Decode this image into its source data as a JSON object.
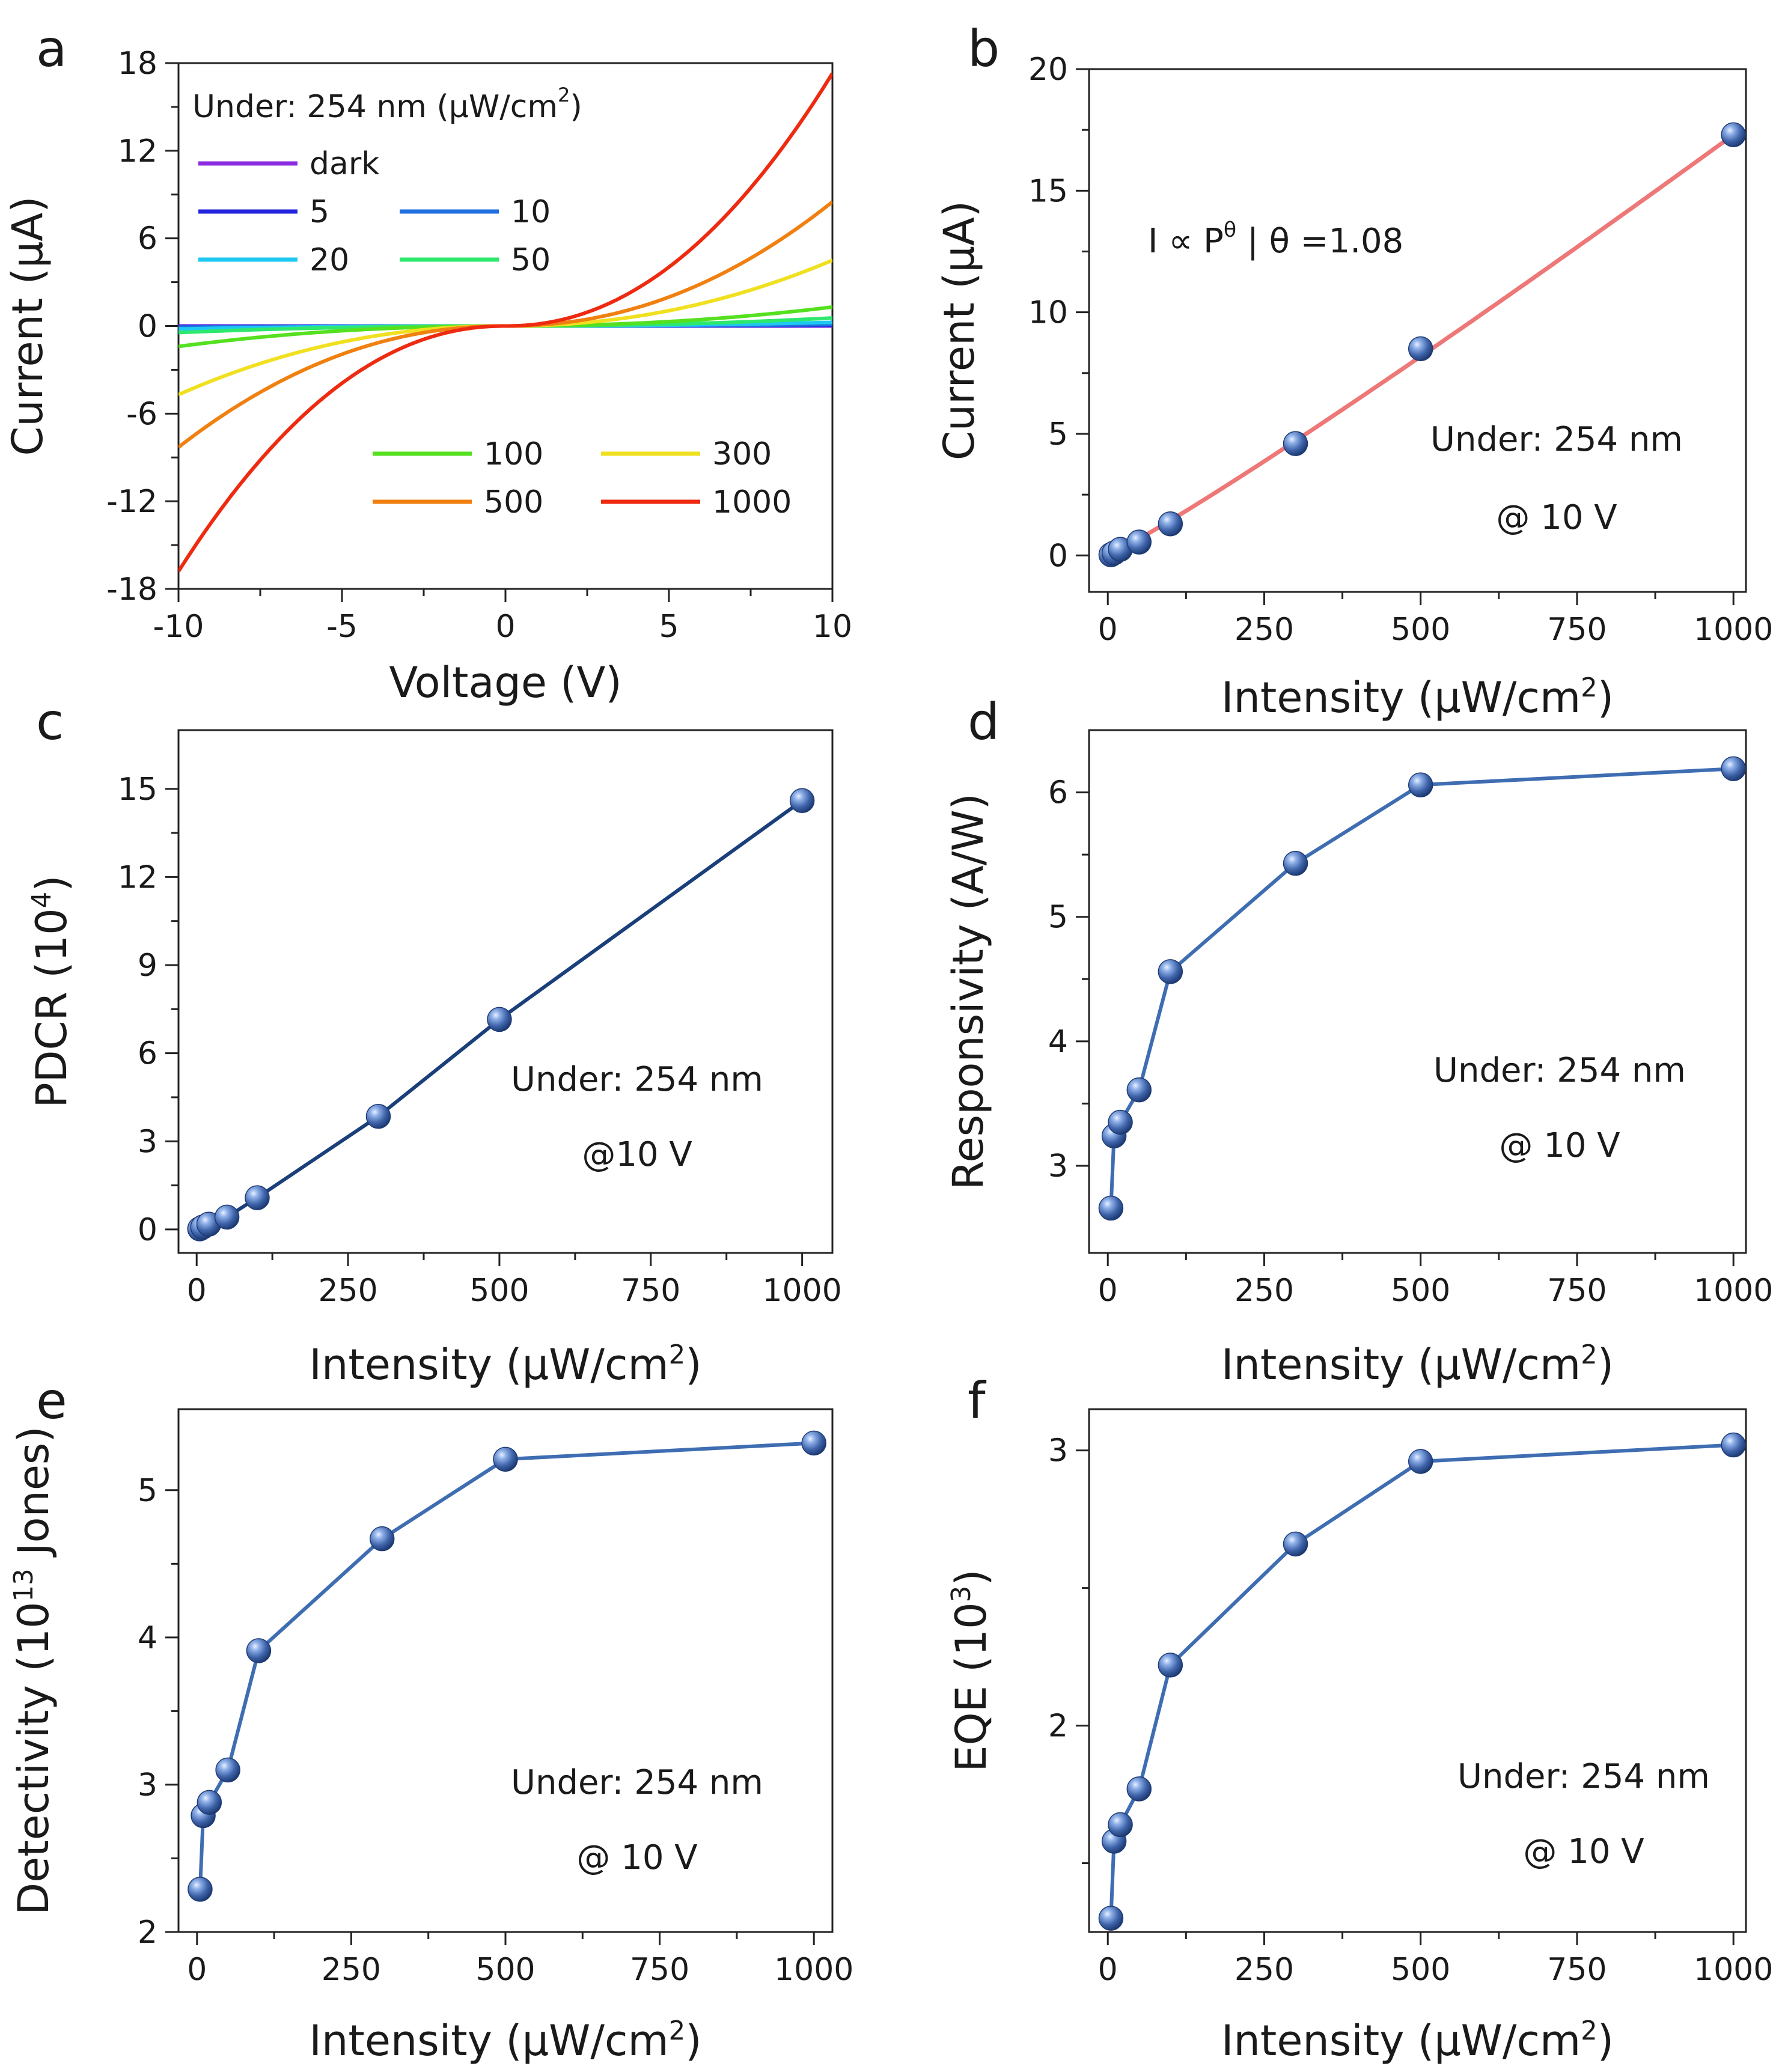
{
  "figure": {
    "panels": [
      "a",
      "b",
      "c",
      "d",
      "e",
      "f"
    ]
  },
  "chart_data": [
    {
      "panel": "a",
      "type": "line",
      "xlabel": "Voltage (V)",
      "ylabel": "Current (μA)",
      "xlim": [
        -10,
        10
      ],
      "ylim": [
        -18,
        18
      ],
      "xticks": [
        -10,
        -5,
        0,
        5,
        10
      ],
      "yticks": [
        -18,
        -12,
        -6,
        0,
        6,
        12,
        18
      ],
      "legend_title": "Under: 254 nm (μW/cm²)",
      "legend_title_parts": [
        "Under: 254 nm (μW/cm",
        "2",
        ")"
      ],
      "series": [
        {
          "name": "dark",
          "color": "#8a2be2",
          "i_pos": 0.0,
          "i_neg": 0.0
        },
        {
          "name": "5",
          "color": "#2222dd",
          "i_pos": 0.05,
          "i_neg": -0.04
        },
        {
          "name": "10",
          "color": "#1f6fe0",
          "i_pos": 0.1,
          "i_neg": -0.08
        },
        {
          "name": "20",
          "color": "#1ec8f0",
          "i_pos": 0.25,
          "i_neg": -0.2
        },
        {
          "name": "50",
          "color": "#2ee86e",
          "i_pos": 0.55,
          "i_neg": -0.45
        },
        {
          "name": "100",
          "color": "#55e020",
          "i_pos": 1.3,
          "i_neg": -1.4
        },
        {
          "name": "300",
          "color": "#f0e020",
          "i_pos": 4.5,
          "i_neg": -4.7
        },
        {
          "name": "500",
          "color": "#f08010",
          "i_pos": 8.5,
          "i_neg": -8.3
        },
        {
          "name": "1000",
          "color": "#ee2a10",
          "i_pos": 17.3,
          "i_neg": -16.8
        }
      ]
    },
    {
      "panel": "b",
      "type": "scatter",
      "xlabel": "Intensity (μW/cm²)",
      "xlabel_parts": [
        "Intensity (μW/cm",
        "2",
        ")"
      ],
      "ylabel": "Current (μA)",
      "xlim": [
        -30,
        1020
      ],
      "ylim": [
        -1.5,
        20
      ],
      "xticks": [
        0,
        250,
        500,
        750,
        1000
      ],
      "yticks": [
        0,
        5,
        10,
        15,
        20
      ],
      "x": [
        5,
        10,
        20,
        50,
        100,
        300,
        500,
        1000
      ],
      "y": [
        0.03,
        0.1,
        0.25,
        0.55,
        1.3,
        4.6,
        8.5,
        17.3
      ],
      "fit": {
        "type": "power",
        "theta": 1.08,
        "color": "#ee7777"
      },
      "fit_label": "I ∝ P^θ | θ =1.08",
      "fit_label_parts": [
        "I ∝ P",
        "θ",
        " | θ =1.08"
      ],
      "annotations": [
        "Under: 254 nm",
        "@ 10 V"
      ]
    },
    {
      "panel": "c",
      "type": "line",
      "xlabel": "Intensity (μW/cm²)",
      "xlabel_parts": [
        "Intensity (μW/cm",
        "2",
        ")"
      ],
      "ylabel": "PDCR (10⁴)",
      "ylabel_parts": [
        "PDCR (10",
        "4",
        ")"
      ],
      "xlim": [
        -30,
        1050
      ],
      "ylim": [
        -0.8,
        17
      ],
      "xticks": [
        0,
        250,
        500,
        750,
        1000
      ],
      "yticks": [
        0,
        3,
        6,
        9,
        12,
        15
      ],
      "x": [
        5,
        10,
        20,
        50,
        100,
        300,
        500,
        1000
      ],
      "y": [
        0.02,
        0.08,
        0.18,
        0.42,
        1.08,
        3.85,
        7.15,
        14.6
      ],
      "line_color": "#1a3f7a",
      "annotations": [
        "Under: 254 nm",
        "@10 V"
      ]
    },
    {
      "panel": "d",
      "type": "line",
      "xlabel": "Intensity (μW/cm²)",
      "xlabel_parts": [
        "Intensity (μW/cm",
        "2",
        ")"
      ],
      "ylabel": "Responsivity (A/W)",
      "xlim": [
        -30,
        1020
      ],
      "ylim": [
        2.3,
        6.5
      ],
      "xticks": [
        0,
        250,
        500,
        750,
        1000
      ],
      "yticks": [
        3,
        4,
        5,
        6
      ],
      "x": [
        5,
        10,
        20,
        50,
        100,
        300,
        500,
        1000
      ],
      "y": [
        2.66,
        3.24,
        3.35,
        3.61,
        4.56,
        5.43,
        6.06,
        6.19
      ],
      "line_color": "#3f6db2",
      "annotations": [
        "Under: 254 nm",
        "@ 10 V"
      ]
    },
    {
      "panel": "e",
      "type": "line",
      "xlabel": "Intensity (μW/cm²)",
      "xlabel_parts": [
        "Intensity (μW/cm",
        "2",
        ")"
      ],
      "ylabel": "Detectivity (10¹³ Jones)",
      "ylabel_parts": [
        "Detectivity (10",
        "13",
        " Jones)"
      ],
      "xlim": [
        -30,
        1030
      ],
      "ylim": [
        2,
        5.55
      ],
      "xticks": [
        0,
        250,
        500,
        750,
        1000
      ],
      "yticks": [
        2,
        3,
        4,
        5
      ],
      "x": [
        5,
        10,
        20,
        50,
        100,
        300,
        500,
        1000
      ],
      "y": [
        2.29,
        2.79,
        2.88,
        3.1,
        3.91,
        4.67,
        5.21,
        5.32
      ],
      "line_color": "#3f6db2",
      "annotations": [
        "Under: 254 nm",
        "@ 10 V"
      ]
    },
    {
      "panel": "f",
      "type": "line",
      "xlabel": "Intensity (μW/cm²)",
      "xlabel_parts": [
        "Intensity (μW/cm",
        "2",
        ")"
      ],
      "ylabel": "EQE (10³)",
      "ylabel_parts": [
        "EQE (10",
        "3",
        ")"
      ],
      "xlim": [
        -30,
        1020
      ],
      "ylim": [
        1.25,
        3.15
      ],
      "xticks": [
        0,
        250,
        500,
        750,
        1000
      ],
      "yticks": [
        2,
        3
      ],
      "minor_yticks": [
        1.5,
        2.5
      ],
      "x": [
        5,
        10,
        20,
        50,
        100,
        300,
        500,
        1000
      ],
      "y": [
        1.3,
        1.58,
        1.64,
        1.77,
        2.22,
        2.66,
        2.96,
        3.02
      ],
      "line_color": "#3f6db2",
      "annotations": [
        "Under: 254 nm",
        "@ 10 V"
      ]
    }
  ]
}
